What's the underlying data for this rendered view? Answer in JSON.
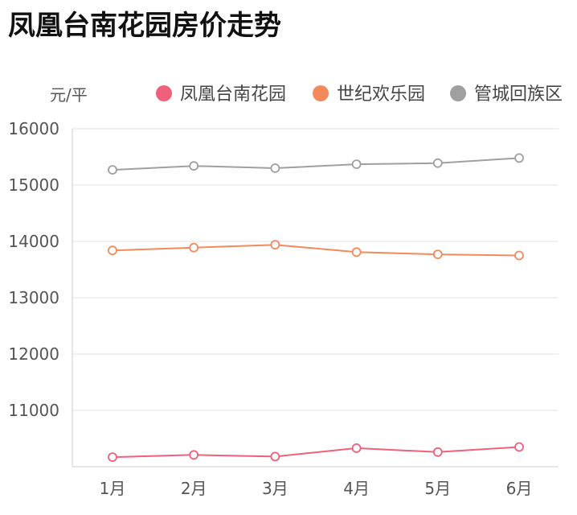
{
  "page": {
    "title": "凤凰台南花园房价走势"
  },
  "chart_data": {
    "type": "line",
    "title": "",
    "xlabel": "",
    "ylabel": "元/平",
    "categories": [
      "1月",
      "2月",
      "3月",
      "4月",
      "5月",
      "6月"
    ],
    "ylim": [
      10000,
      16000
    ],
    "yticks": [
      16000,
      15000,
      14000,
      13000,
      12000,
      11000
    ],
    "grid": true,
    "legend_position": "top",
    "series": [
      {
        "name": "凤凰台南花园",
        "color": "#f0607a",
        "values": [
          10170,
          10210,
          10180,
          10330,
          10260,
          10350
        ]
      },
      {
        "name": "世纪欢乐园",
        "color": "#f28a5c",
        "values": [
          13840,
          13890,
          13940,
          13810,
          13770,
          13750
        ]
      },
      {
        "name": "管城回族区",
        "color": "#a0a0a0",
        "values": [
          15270,
          15340,
          15300,
          15370,
          15390,
          15480
        ]
      }
    ]
  }
}
